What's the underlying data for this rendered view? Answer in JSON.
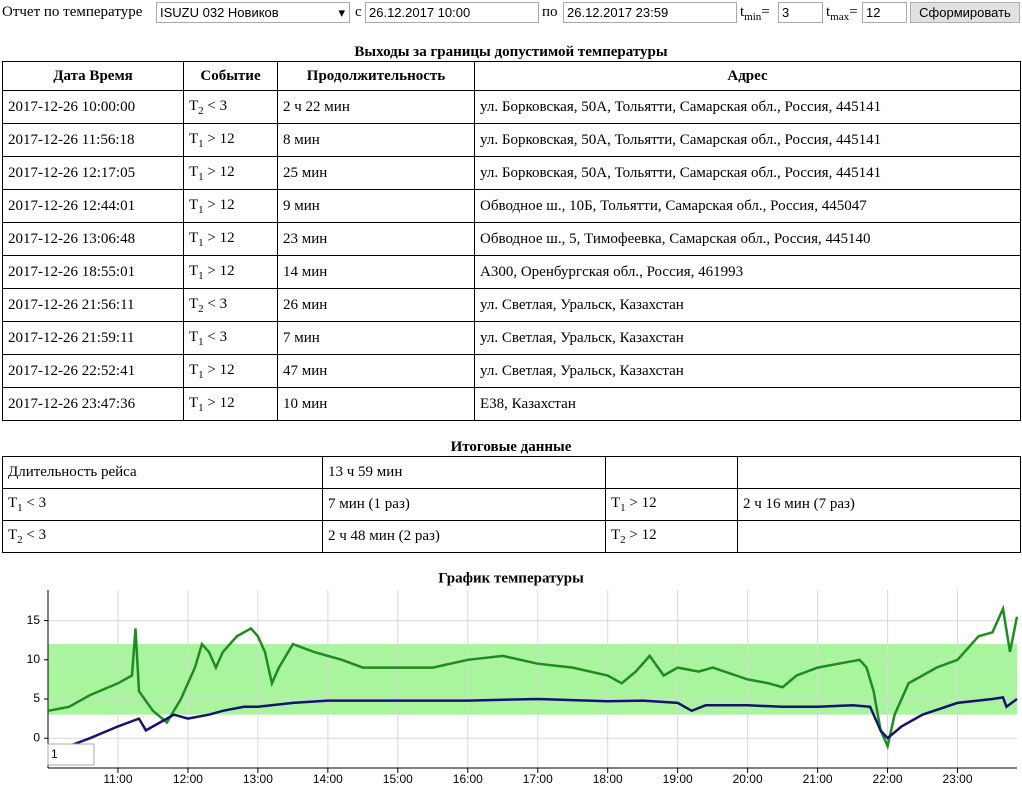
{
  "form": {
    "label": "Отчет по температуре",
    "vehicle": "ISUZU 032 Новиков",
    "from_label": "с",
    "from": "26.12.2017 10:00",
    "to_label": "по",
    "to": "26.12.2017 23:59",
    "tmin_label": {
      "base": "t",
      "sub": "min",
      "rest": "="
    },
    "tmin": "3",
    "tmax_label": {
      "base": "t",
      "sub": "max",
      "rest": "="
    },
    "tmax": "12",
    "button": "Сформировать"
  },
  "violations": {
    "title": "Выходы за границы допустимой температуры",
    "headers": [
      "Дата Время",
      "Событие",
      "Продолжительность",
      "Адрес"
    ],
    "rows": [
      {
        "time": "2017-12-26 10:00:00",
        "event": {
          "base": "T",
          "sub": "2",
          "rest": " < 3"
        },
        "duration": "2 ч 22 мин",
        "address": "ул. Борковская, 50А, Тольятти, Самарская обл., Россия, 445141"
      },
      {
        "time": "2017-12-26 11:56:18",
        "event": {
          "base": "T",
          "sub": "1",
          "rest": " > 12"
        },
        "duration": "8 мин",
        "address": "ул. Борковская, 50А, Тольятти, Самарская обл., Россия, 445141"
      },
      {
        "time": "2017-12-26 12:17:05",
        "event": {
          "base": "T",
          "sub": "1",
          "rest": " > 12"
        },
        "duration": "25 мин",
        "address": "ул. Борковская, 50А, Тольятти, Самарская обл., Россия, 445141"
      },
      {
        "time": "2017-12-26 12:44:01",
        "event": {
          "base": "T",
          "sub": "1",
          "rest": " > 12"
        },
        "duration": "9 мин",
        "address": "Обводное ш., 10Б, Тольятти, Самарская обл., Россия, 445047"
      },
      {
        "time": "2017-12-26 13:06:48",
        "event": {
          "base": "T",
          "sub": "1",
          "rest": " > 12"
        },
        "duration": "23 мин",
        "address": "Обводное ш., 5, Тимофеевка, Самарская обл., Россия, 445140"
      },
      {
        "time": "2017-12-26 18:55:01",
        "event": {
          "base": "T",
          "sub": "1",
          "rest": " > 12"
        },
        "duration": "14 мин",
        "address": "A300, Оренбургская обл., Россия, 461993"
      },
      {
        "time": "2017-12-26 21:56:11",
        "event": {
          "base": "T",
          "sub": "2",
          "rest": " < 3"
        },
        "duration": "26 мин",
        "address": "ул. Светлая, Уральск, Казахстан"
      },
      {
        "time": "2017-12-26 21:59:11",
        "event": {
          "base": "T",
          "sub": "1",
          "rest": " < 3"
        },
        "duration": "7 мин",
        "address": "ул. Светлая, Уральск, Казахстан"
      },
      {
        "time": "2017-12-26 22:52:41",
        "event": {
          "base": "T",
          "sub": "1",
          "rest": " > 12"
        },
        "duration": "47 мин",
        "address": "ул. Светлая, Уральск, Казахстан"
      },
      {
        "time": "2017-12-26 23:47:36",
        "event": {
          "base": "T",
          "sub": "1",
          "rest": " > 12"
        },
        "duration": "10 мин",
        "address": "E38, Казахстан"
      }
    ]
  },
  "summary": {
    "title": "Итоговые данные",
    "rows": [
      [
        "Длительность рейса",
        "13 ч 59 мин",
        null,
        null
      ],
      [
        {
          "base": "T",
          "sub": "1",
          "rest": " < 3"
        },
        "7 мин (1 раз)",
        {
          "base": "T",
          "sub": "1",
          "rest": " > 12"
        },
        "2 ч 16 мин (7 раз)"
      ],
      [
        {
          "base": "T",
          "sub": "2",
          "rest": " < 3"
        },
        "2 ч 48 мин (2 раз)",
        {
          "base": "T",
          "sub": "2",
          "rest": " > 12"
        },
        null
      ]
    ]
  },
  "chart": {
    "type": "line",
    "title": "График температуры",
    "xlim": [
      10,
      23.85
    ],
    "ylim": [
      -3.8,
      18.9
    ],
    "xticks": [
      {
        "value": 11,
        "label": "11:00"
      },
      {
        "value": 12,
        "label": "12:00"
      },
      {
        "value": 13,
        "label": "13:00"
      },
      {
        "value": 14,
        "label": "14:00"
      },
      {
        "value": 15,
        "label": "15:00"
      },
      {
        "value": 16,
        "label": "16:00"
      },
      {
        "value": 17,
        "label": "17:00"
      },
      {
        "value": 18,
        "label": "18:00"
      },
      {
        "value": 19,
        "label": "19:00"
      },
      {
        "value": 20,
        "label": "20:00"
      },
      {
        "value": 21,
        "label": "21:00"
      },
      {
        "value": 22,
        "label": "22:00"
      },
      {
        "value": 23,
        "label": "23:00"
      }
    ],
    "yticks": [
      0,
      5,
      10,
      15
    ],
    "grid": true,
    "band_color": "#a8f59e",
    "zoom_input": "1",
    "series": [
      {
        "color": "#1e8c1e",
        "x": [
          10.0,
          10.3,
          10.6,
          11.0,
          11.2,
          11.25,
          11.3,
          11.5,
          11.7,
          11.9,
          12.1,
          12.2,
          12.3,
          12.4,
          12.5,
          12.7,
          12.9,
          13.0,
          13.1,
          13.2,
          13.3,
          13.5,
          13.8,
          14.2,
          14.5,
          15.0,
          15.5,
          16.0,
          16.5,
          17.0,
          17.5,
          18.0,
          18.2,
          18.4,
          18.6,
          18.8,
          19.0,
          19.3,
          19.5,
          20.0,
          20.3,
          20.5,
          20.7,
          21.0,
          21.3,
          21.6,
          21.7,
          21.8,
          21.9,
          22.0,
          22.1,
          22.3,
          22.7,
          23.0,
          23.3,
          23.5,
          23.65,
          23.75,
          23.85
        ],
        "values": [
          3.5,
          4,
          5.5,
          7,
          8,
          14,
          6,
          3.5,
          2,
          5,
          9,
          12,
          11,
          9,
          11,
          13,
          14,
          13,
          11,
          7,
          9,
          12,
          11,
          10,
          9,
          9,
          9,
          10,
          10.5,
          9.5,
          9,
          8,
          7,
          8.5,
          10.5,
          8,
          9,
          8.5,
          9,
          7.5,
          7,
          6.5,
          8,
          9,
          9.5,
          10,
          9,
          6,
          1,
          -1,
          3,
          7,
          9,
          10,
          13,
          13.5,
          16.5,
          11,
          15.5
        ]
      },
      {
        "color": "#14146e",
        "x": [
          10.3,
          10.6,
          11.0,
          11.3,
          11.4,
          11.6,
          11.8,
          12.0,
          12.3,
          12.5,
          12.8,
          13.0,
          13.5,
          14.0,
          15.0,
          16.0,
          17.0,
          18.0,
          18.5,
          19.0,
          19.2,
          19.4,
          20.0,
          20.5,
          21.0,
          21.5,
          21.75,
          21.9,
          22.0,
          22.2,
          22.5,
          23.0,
          23.5,
          23.65,
          23.7,
          23.85
        ],
        "values": [
          -1,
          0,
          1.5,
          2.5,
          1,
          2,
          3,
          2.5,
          3,
          3.5,
          4,
          4,
          4.5,
          4.8,
          4.8,
          4.8,
          5,
          4.7,
          4.8,
          4.5,
          3.5,
          4.2,
          4.2,
          4,
          4,
          4.2,
          4,
          1,
          0,
          1.5,
          3,
          4.5,
          5,
          5.2,
          4,
          5
        ]
      }
    ]
  }
}
